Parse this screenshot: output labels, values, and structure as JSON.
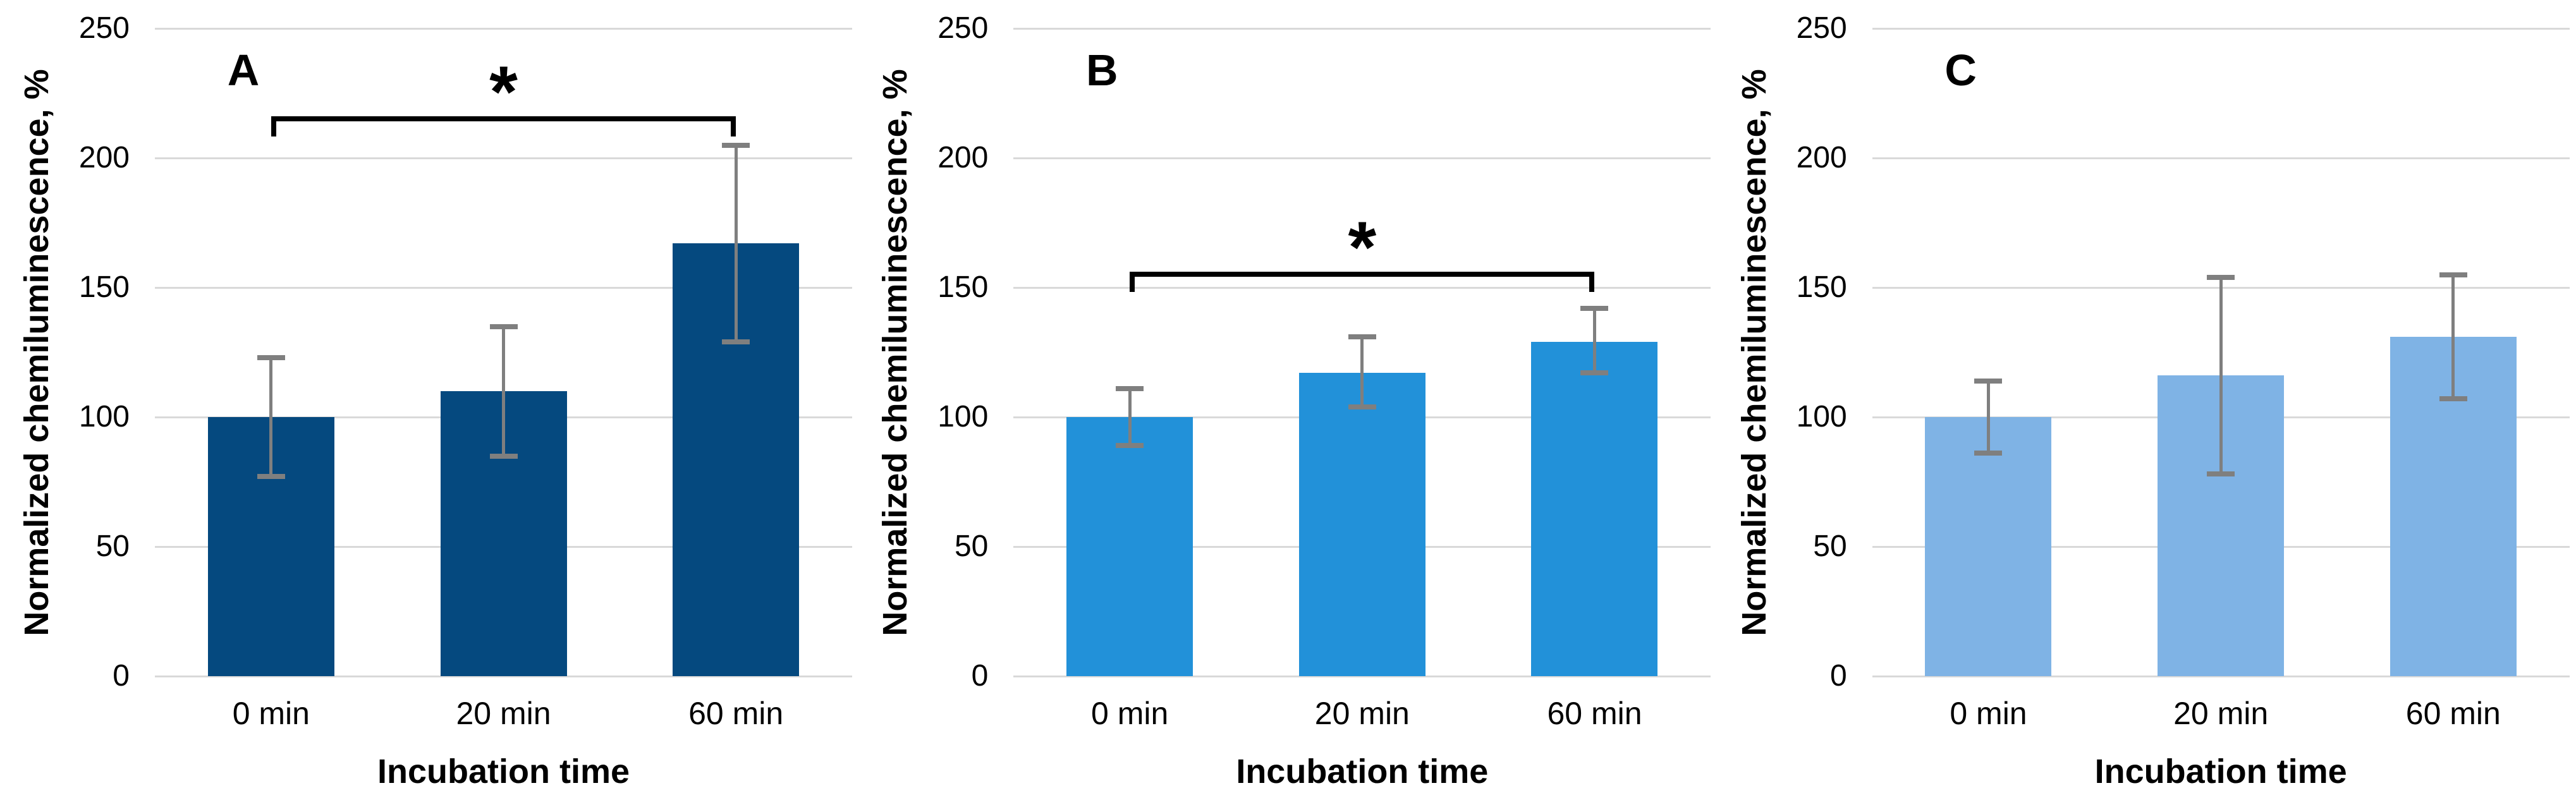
{
  "figure": {
    "background": "#FFFFFF",
    "y_axis_label": "Normalized chemiluminescence, %",
    "x_axis_label": "Incubation time",
    "categories": [
      "0 min",
      "20 min",
      "60 min"
    ],
    "y_ticks": [
      0,
      50,
      100,
      150,
      200,
      250
    ],
    "ylim": [
      0,
      250
    ],
    "grid_color": "#D9D9D9",
    "error_bar_color": "#7F7F7F",
    "text_color": "#000000",
    "significance_marker": "*"
  },
  "chart_data": [
    {
      "type": "bar",
      "panel_label": "A",
      "title": "",
      "xlabel": "Incubation time",
      "ylabel": "Normalized chemiluminescence, %",
      "categories": [
        "0 min",
        "20 min",
        "60 min"
      ],
      "values": [
        100,
        110,
        167
      ],
      "error_low": [
        77,
        85,
        129
      ],
      "error_high": [
        123,
        135,
        205
      ],
      "bar_color": "#05497F",
      "ylim": [
        0,
        250
      ],
      "grid": true,
      "legend": null,
      "significance": {
        "from_category": "0 min",
        "to_category": "60 min",
        "label": "*",
        "y_value": 216
      }
    },
    {
      "type": "bar",
      "panel_label": "B",
      "title": "",
      "xlabel": "Incubation time",
      "ylabel": "Normalized chemiluminescence, %",
      "categories": [
        "0 min",
        "20 min",
        "60 min"
      ],
      "values": [
        100,
        117,
        129
      ],
      "error_low": [
        89,
        104,
        117
      ],
      "error_high": [
        111,
        131,
        142
      ],
      "bar_color": "#2291D9",
      "ylim": [
        0,
        250
      ],
      "grid": true,
      "legend": null,
      "significance": {
        "from_category": "0 min",
        "to_category": "60 min",
        "label": "*",
        "y_value": 156
      }
    },
    {
      "type": "bar",
      "panel_label": "C",
      "title": "",
      "xlabel": "Incubation time",
      "ylabel": "Normalized chemiluminescence, %",
      "categories": [
        "0 min",
        "20 min",
        "60 min"
      ],
      "values": [
        100,
        116,
        131
      ],
      "error_low": [
        86,
        78,
        107
      ],
      "error_high": [
        114,
        154,
        155
      ],
      "bar_color": "#7FB3E5",
      "ylim": [
        0,
        250
      ],
      "grid": true,
      "legend": null,
      "significance": null
    }
  ]
}
